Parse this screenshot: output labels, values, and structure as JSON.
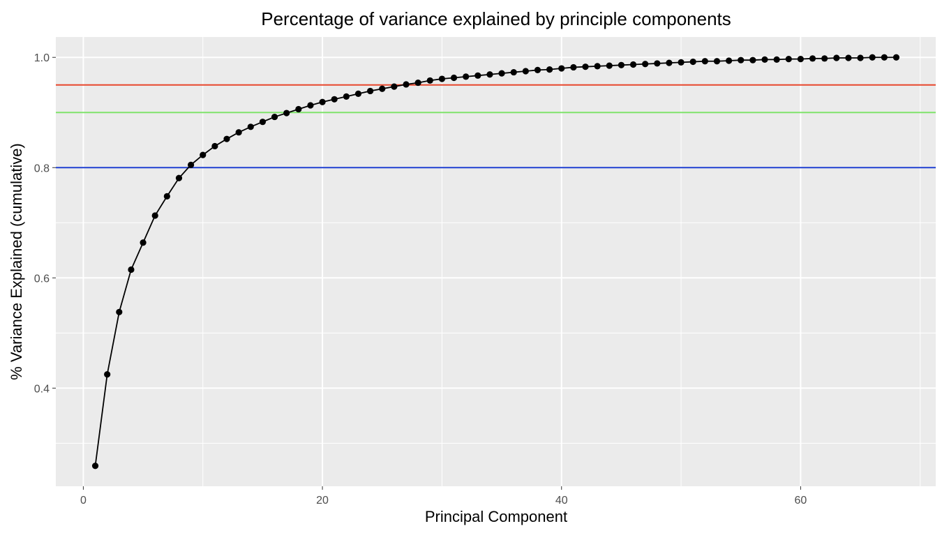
{
  "chart_data": {
    "type": "line",
    "title": "Percentage of variance explained by principle components",
    "xlabel": "Principal Component",
    "ylabel": "% Variance Explained (cumulative)",
    "xlim": [
      -2.3,
      71.3
    ],
    "ylim": [
      0.222,
      1.037
    ],
    "xticks": [
      0,
      20,
      40,
      60
    ],
    "yticks": [
      0.4,
      0.6,
      0.8,
      1.0
    ],
    "xtick_labels": [
      "0",
      "20",
      "40",
      "60"
    ],
    "ytick_labels": [
      "0.4",
      "0.6",
      "0.8",
      "1.0"
    ],
    "grid": true,
    "background": "#ebebeb",
    "grid_color": "#ffffff",
    "line_color": "#000000",
    "hlines": [
      {
        "y": 0.95,
        "color": "#e8472c"
      },
      {
        "y": 0.9,
        "color": "#7fe36b"
      },
      {
        "y": 0.8,
        "color": "#1f3fd0"
      }
    ],
    "x": [
      1,
      2,
      3,
      4,
      5,
      6,
      7,
      8,
      9,
      10,
      11,
      12,
      13,
      14,
      15,
      16,
      17,
      18,
      19,
      20,
      21,
      22,
      23,
      24,
      25,
      26,
      27,
      28,
      29,
      30,
      31,
      32,
      33,
      34,
      35,
      36,
      37,
      38,
      39,
      40,
      41,
      42,
      43,
      44,
      45,
      46,
      47,
      48,
      49,
      50,
      51,
      52,
      53,
      54,
      55,
      56,
      57,
      58,
      59,
      60,
      61,
      62,
      63,
      64,
      65,
      66,
      67,
      68
    ],
    "y": [
      0.259,
      0.425,
      0.538,
      0.615,
      0.664,
      0.713,
      0.748,
      0.781,
      0.805,
      0.823,
      0.839,
      0.852,
      0.864,
      0.874,
      0.883,
      0.892,
      0.899,
      0.906,
      0.913,
      0.919,
      0.924,
      0.929,
      0.934,
      0.939,
      0.943,
      0.947,
      0.951,
      0.954,
      0.958,
      0.961,
      0.963,
      0.965,
      0.967,
      0.969,
      0.971,
      0.973,
      0.975,
      0.977,
      0.978,
      0.98,
      0.982,
      0.983,
      0.984,
      0.985,
      0.986,
      0.987,
      0.988,
      0.989,
      0.99,
      0.991,
      0.992,
      0.993,
      0.993,
      0.994,
      0.995,
      0.995,
      0.996,
      0.996,
      0.997,
      0.997,
      0.998,
      0.998,
      0.999,
      0.999,
      0.999,
      1.0,
      1.0,
      1.0
    ]
  }
}
